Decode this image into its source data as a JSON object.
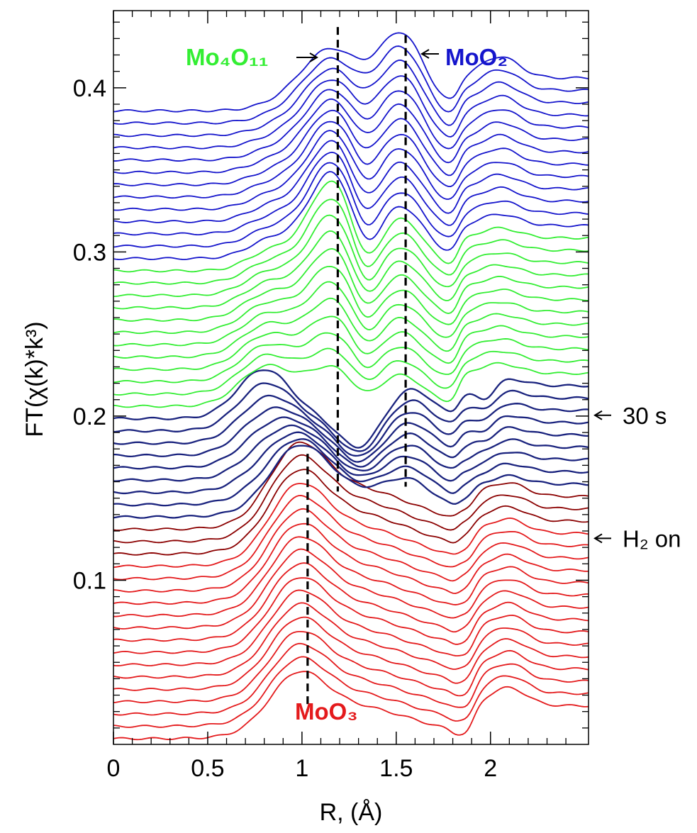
{
  "chart_data": {
    "type": "line",
    "xlabel": "R, (Å)",
    "ylabel": "FT(χ(k)*k³)",
    "xlim": [
      0,
      2.52
    ],
    "ylim": [
      0,
      0.447
    ],
    "xticks": [
      {
        "value": 0,
        "label": "0"
      },
      {
        "value": 0.5,
        "label": "0.5"
      },
      {
        "value": 1.0,
        "label": "1"
      },
      {
        "value": 1.5,
        "label": "1.5"
      },
      {
        "value": 2.0,
        "label": "2"
      }
    ],
    "yticks": [
      {
        "value": 0.1,
        "label": "0.1"
      },
      {
        "value": 0.2,
        "label": "0.2"
      },
      {
        "value": 0.3,
        "label": "0.3"
      },
      {
        "value": 0.4,
        "label": "0.4"
      }
    ],
    "grid": false,
    "curve_count": 52,
    "curve_offset_step": 0.0075,
    "first_curve_baseline": 0.0035,
    "groups": [
      {
        "phase": "MoO3",
        "color": "#e41a1c",
        "count": 15
      },
      {
        "phase": "transition",
        "color": "#8b0000",
        "count": 3
      },
      {
        "phase": "reducing",
        "color": "#1a237e",
        "count": 9
      },
      {
        "phase": "Mo4O11",
        "color": "#33ee33",
        "count": 12
      },
      {
        "phase": "MoO2",
        "color": "#1515cc",
        "count": 13
      }
    ],
    "reference_lines": [
      {
        "label": "Mo₄O₁₁",
        "x": 1.19,
        "y_range": [
          0.154,
          0.437
        ],
        "color": "#33ee33"
      },
      {
        "label": "MoO₂",
        "x": 1.55,
        "y_range": [
          0.157,
          0.432
        ],
        "color": "#1515cc"
      },
      {
        "label": "MoO₃",
        "x": 1.03,
        "y_range": [
          0.02,
          0.177
        ],
        "color": "#e41a1c"
      }
    ],
    "annotations": [
      {
        "text": "30 s",
        "at_curve": 26
      },
      {
        "text": "H₂ on",
        "at_curve": 16
      }
    ],
    "phase_labels": {
      "mo4o11": "Mo₄O₁₁",
      "moo2": "MoO₂",
      "moo3": "MoO₃"
    }
  }
}
